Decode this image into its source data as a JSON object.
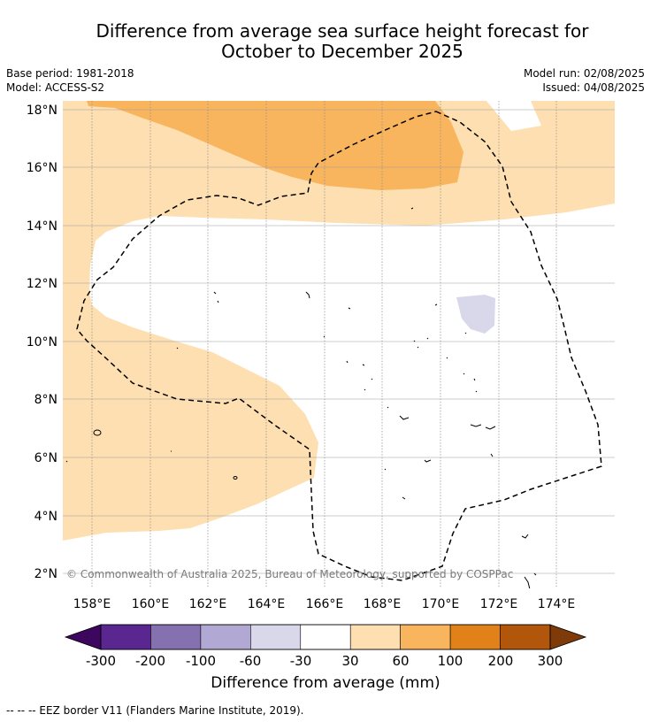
{
  "title": {
    "line1": "Difference from average sea surface height forecast for",
    "line2": "October to December 2025"
  },
  "meta": {
    "base_period": "Base period: 1981-2018",
    "model": "Model: ACCESS-S2",
    "model_run": "Model run: 02/08/2025",
    "issued": "Issued: 04/08/2025"
  },
  "map": {
    "lon_labels": [
      "158°E",
      "160°E",
      "162°E",
      "164°E",
      "166°E",
      "168°E",
      "170°E",
      "172°E",
      "174°E"
    ],
    "lat_labels": [
      "18°N",
      "16°N",
      "14°N",
      "12°N",
      "10°N",
      "8°N",
      "6°N",
      "4°N",
      "2°N"
    ],
    "copyright": "© Commonwealth of Australia 2025, Bureau of Meteorology, supported by COSPPac"
  },
  "colorbar": {
    "ticks": [
      "-300",
      "-200",
      "-100",
      "-60",
      "-30",
      "30",
      "60",
      "100",
      "200",
      "300"
    ],
    "colors": [
      "#5a2790",
      "#8571b0",
      "#b1a8d3",
      "#d9d8eb",
      "#ffffff",
      "#fddfb1",
      "#f9b55e",
      "#e0811a",
      "#b1560a"
    ],
    "under_color": "#3d0760",
    "over_color": "#7f3a0a",
    "label": "Difference from average (mm)"
  },
  "footer": "--  --  -- EEZ border V11 (Flanders Marine Institute, 2019)."
}
